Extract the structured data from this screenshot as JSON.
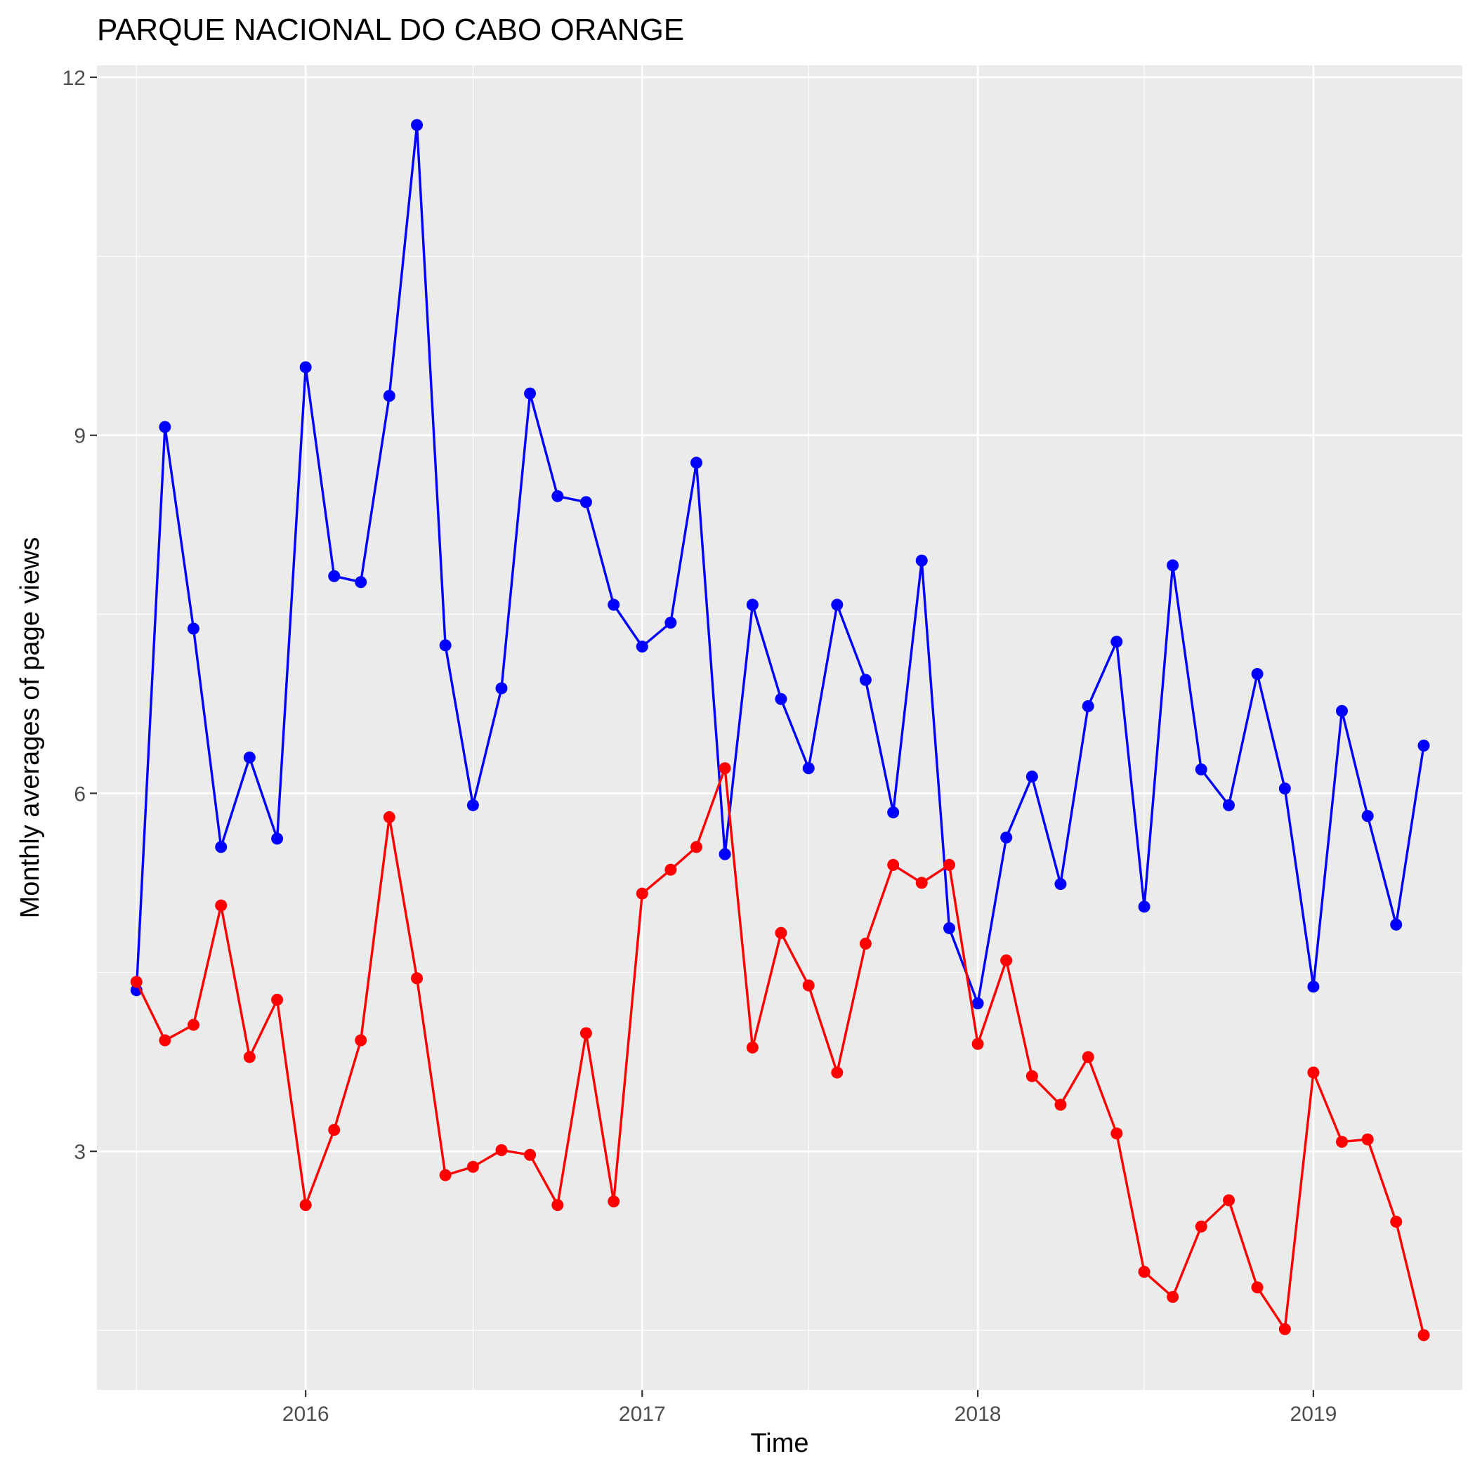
{
  "chart_data": {
    "type": "line",
    "title": "PARQUE NACIONAL DO CABO ORANGE",
    "xlabel": "Time",
    "ylabel": "Monthly averages of page views",
    "xlim": [
      "2015-05-19",
      "2019-06-12"
    ],
    "ylim": [
      1.0,
      12.1
    ],
    "x_ticks": [
      "2016",
      "2017",
      "2018",
      "2019"
    ],
    "x_tick_dates": [
      "2016-01-01",
      "2017-01-01",
      "2018-01-01",
      "2019-01-01"
    ],
    "y_ticks": [
      3,
      6,
      9,
      12
    ],
    "grid": true,
    "legend": "none",
    "x": [
      "2015-07-01",
      "2015-08-01",
      "2015-09-01",
      "2015-10-01",
      "2015-11-01",
      "2015-12-01",
      "2016-01-01",
      "2016-02-01",
      "2016-03-01",
      "2016-04-01",
      "2016-05-01",
      "2016-06-01",
      "2016-07-01",
      "2016-08-01",
      "2016-09-01",
      "2016-10-01",
      "2016-11-01",
      "2016-12-01",
      "2017-01-01",
      "2017-02-01",
      "2017-03-01",
      "2017-04-01",
      "2017-05-01",
      "2017-06-01",
      "2017-07-01",
      "2017-08-01",
      "2017-09-01",
      "2017-10-01",
      "2017-11-01",
      "2017-12-01",
      "2018-01-01",
      "2018-02-01",
      "2018-03-01",
      "2018-04-01",
      "2018-05-01",
      "2018-06-01",
      "2018-07-01",
      "2018-08-01",
      "2018-09-01",
      "2018-10-01",
      "2018-11-01",
      "2018-12-01",
      "2019-01-01",
      "2019-02-01",
      "2019-03-01",
      "2019-04-01",
      "2019-05-01"
    ],
    "series": [
      {
        "color": "#0000ff",
        "values": [
          4.35,
          9.07,
          7.38,
          5.55,
          6.3,
          5.62,
          9.57,
          7.82,
          7.77,
          9.33,
          11.6,
          7.24,
          5.9,
          6.88,
          9.35,
          8.49,
          8.44,
          7.58,
          7.23,
          7.43,
          8.77,
          5.49,
          7.58,
          6.79,
          6.21,
          7.58,
          6.95,
          5.84,
          7.95,
          4.87,
          4.24,
          5.63,
          6.14,
          5.24,
          6.73,
          7.27,
          5.05,
          7.91,
          6.2,
          5.9,
          7.0,
          6.04,
          4.38,
          6.69,
          5.81,
          4.9,
          6.4
        ]
      },
      {
        "color": "#ff0000",
        "values": [
          4.42,
          3.93,
          4.06,
          5.06,
          3.79,
          4.27,
          2.55,
          3.18,
          3.93,
          5.8,
          4.45,
          2.8,
          2.87,
          3.01,
          2.97,
          2.55,
          3.99,
          2.58,
          5.16,
          5.36,
          5.55,
          6.21,
          3.87,
          4.83,
          4.39,
          3.66,
          4.74,
          5.4,
          5.25,
          5.4,
          3.9,
          4.6,
          3.63,
          3.39,
          3.79,
          3.15,
          1.99,
          1.78,
          2.37,
          2.59,
          1.86,
          1.51,
          3.66,
          3.08,
          3.1,
          2.41,
          1.46
        ]
      }
    ]
  }
}
